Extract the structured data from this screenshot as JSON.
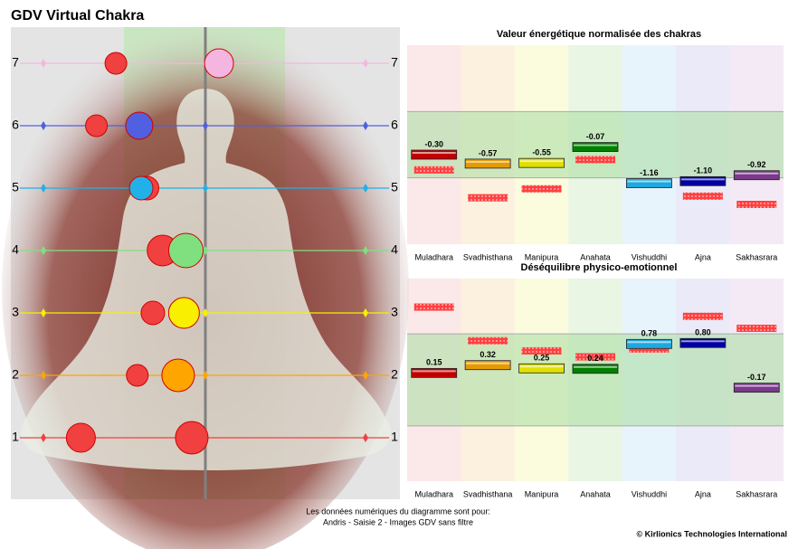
{
  "title": "GDV Virtual Chakra",
  "chart_data": [
    {
      "type": "dot",
      "categories": [
        "1",
        "2",
        "3",
        "4",
        "5",
        "6",
        "7"
      ],
      "xlim": [
        -1,
        1
      ],
      "series": [
        {
          "color": "#f04040",
          "values": [
            -0.64,
            -0.35,
            -0.27,
            -0.22,
            -0.3,
            -0.56,
            -0.46
          ],
          "sizes": [
            16,
            12,
            13,
            17,
            13,
            12,
            12
          ]
        },
        {
          "colors": [
            "#f04040",
            "#ffa500",
            "#f8f000",
            "#80e080",
            "#22b0e8",
            "#5060e0",
            "#f4b6e0"
          ],
          "values": [
            -0.07,
            -0.14,
            -0.11,
            -0.1,
            -0.33,
            -0.34,
            0.07
          ],
          "sizes": [
            18,
            18,
            17,
            19,
            13,
            15,
            16
          ]
        }
      ]
    },
    {
      "type": "marker",
      "title": "Valeur énergétique normalisée des chakras",
      "categories": [
        "Muladhara",
        "Svadhisthana",
        "Manipura",
        "Anahata",
        "Vishuddhi",
        "Ajna",
        "Sakhasrara"
      ],
      "ylim": [
        -3,
        3
      ],
      "band": [
        -1,
        1
      ],
      "series": [
        {
          "colors": [
            "#c00000",
            "#e69a00",
            "#e0e000",
            "#008000",
            "#1ea8e0",
            "#0000a0",
            "#7a3a8a"
          ],
          "values": [
            -0.3,
            -0.57,
            -0.55,
            -0.07,
            -1.16,
            -1.1,
            -0.92
          ],
          "value_labels": [
            "-0.30",
            "-0.57",
            "-0.55",
            "-0.07",
            "-1.16",
            "-1.10",
            "-0.92"
          ]
        },
        {
          "color": "#ff4040",
          "values": [
            -0.76,
            -1.6,
            -1.33,
            -0.45,
            null,
            -1.55,
            -1.8
          ]
        }
      ]
    },
    {
      "type": "marker",
      "title": "Déséquilibre physico-emotionnel",
      "categories": [
        "Muladhara",
        "Svadhisthana",
        "Manipura",
        "Anahata",
        "Vishuddhi",
        "Ajna",
        "Sakhasrara"
      ],
      "ylim": [
        -2.2,
        2.2
      ],
      "band": [
        -1,
        1
      ],
      "series": [
        {
          "colors": [
            "#c00000",
            "#e69a00",
            "#e0e000",
            "#008000",
            "#1ea8e0",
            "#0000a0",
            "#7a3a8a"
          ],
          "values": [
            0.15,
            0.32,
            0.25,
            0.24,
            0.78,
            0.8,
            -0.17
          ],
          "value_labels": [
            "0.15",
            "0.32",
            "0.25",
            "0.24",
            "0.78",
            "0.80",
            "-0.17"
          ]
        },
        {
          "color": "#ff4040",
          "values": [
            1.58,
            0.85,
            0.63,
            0.5,
            0.67,
            1.38,
            1.12
          ]
        }
      ]
    }
  ],
  "footer": {
    "line1": "Les données numériques du diagramme sont pour:",
    "line2": "Andris - Saisie 2 - Images GDV sans filtre",
    "copyright": "© Kirlionics Technologies International"
  }
}
